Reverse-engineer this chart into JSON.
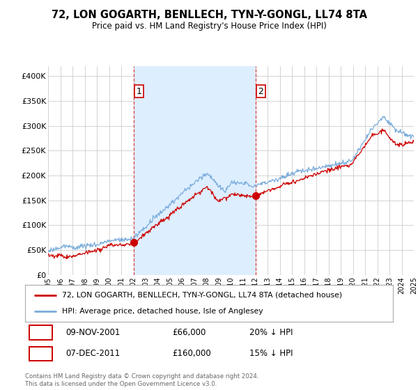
{
  "title": "72, LON GOGARTH, BENLLECH, TYN-Y-GONGL, LL74 8TA",
  "subtitle": "Price paid vs. HM Land Registry's House Price Index (HPI)",
  "ylim": [
    0,
    420000
  ],
  "yticks": [
    0,
    50000,
    100000,
    150000,
    200000,
    250000,
    300000,
    350000,
    400000
  ],
  "ytick_labels": [
    "£0",
    "£50K",
    "£100K",
    "£150K",
    "£200K",
    "£250K",
    "£300K",
    "£350K",
    "£400K"
  ],
  "plot_bg_color": "#ffffff",
  "shade_color": "#ddeeff",
  "red_line_color": "#cc0000",
  "blue_line_color": "#7aacdb",
  "grid_color": "#cccccc",
  "marker1_x": 2002.0,
  "marker1_y": 66000,
  "marker1_label": "1",
  "marker1_date": "09-NOV-2001",
  "marker1_price": "£66,000",
  "marker1_hpi": "20% ↓ HPI",
  "marker2_x": 2012.0,
  "marker2_y": 160000,
  "marker2_label": "2",
  "marker2_date": "07-DEC-2011",
  "marker2_price": "£160,000",
  "marker2_hpi": "15% ↓ HPI",
  "vline1_x": 2002.0,
  "vline2_x": 2012.0,
  "legend_line1": "72, LON GOGARTH, BENLLECH, TYN-Y-GONGL, LL74 8TA (detached house)",
  "legend_line2": "HPI: Average price, detached house, Isle of Anglesey",
  "footnote": "Contains HM Land Registry data © Crown copyright and database right 2024.\nThis data is licensed under the Open Government Licence v3.0.",
  "xmin": 1995,
  "xmax": 2025
}
